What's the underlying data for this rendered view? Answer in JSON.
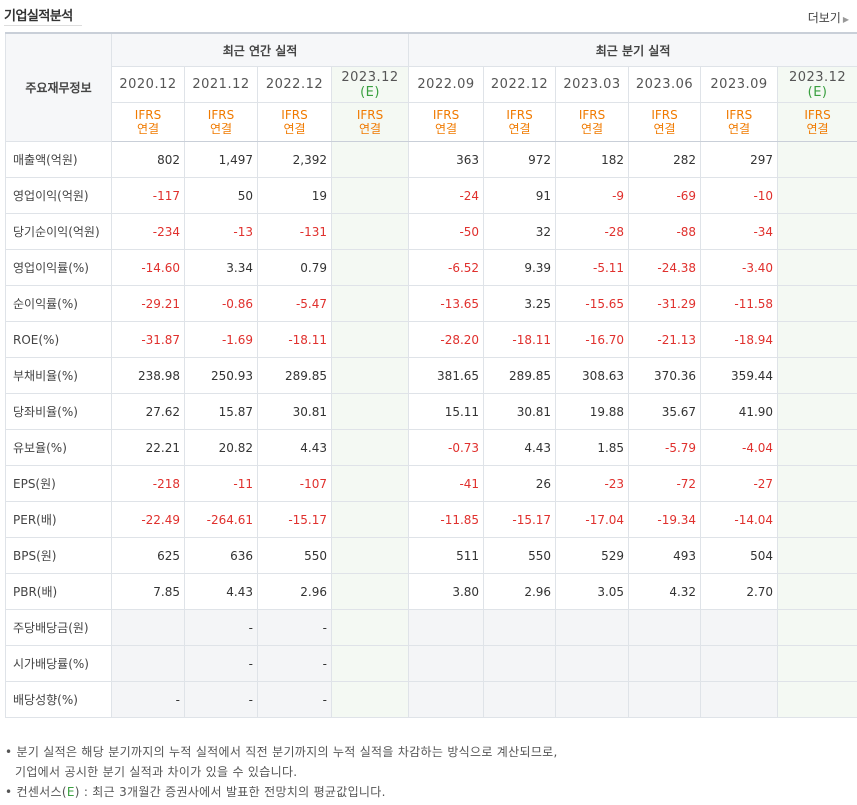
{
  "header": {
    "title": "기업실적분석",
    "more_label": "더보기"
  },
  "table": {
    "row_header": "주요재무정보",
    "annual_group": "최근 연간 실적",
    "quarter_group": "최근 분기 실적",
    "ifrs_top": "IFRS",
    "ifrs_bottom": "연결",
    "annual_periods": [
      "2020.12",
      "2021.12",
      "2022.12"
    ],
    "annual_estimate": {
      "period": "2023.12",
      "mark": "(E)"
    },
    "quarter_periods": [
      "2022.09",
      "2022.12",
      "2023.03",
      "2023.06",
      "2023.09"
    ],
    "quarter_estimate": {
      "period": "2023.12",
      "mark": "(E)"
    },
    "rows": [
      {
        "label": "매출액(억원)",
        "annual": [
          "802",
          "1,497",
          "2,392"
        ],
        "quarter": [
          "363",
          "972",
          "182",
          "282",
          "297"
        ]
      },
      {
        "label": "영업이익(억원)",
        "annual": [
          "-117",
          "50",
          "19"
        ],
        "quarter": [
          "-24",
          "91",
          "-9",
          "-69",
          "-10"
        ]
      },
      {
        "label": "당기순이익(억원)",
        "annual": [
          "-234",
          "-13",
          "-131"
        ],
        "quarter": [
          "-50",
          "32",
          "-28",
          "-88",
          "-34"
        ]
      },
      {
        "label": "영업이익률(%)",
        "annual": [
          "-14.60",
          "3.34",
          "0.79"
        ],
        "quarter": [
          "-6.52",
          "9.39",
          "-5.11",
          "-24.38",
          "-3.40"
        ]
      },
      {
        "label": "순이익률(%)",
        "annual": [
          "-29.21",
          "-0.86",
          "-5.47"
        ],
        "quarter": [
          "-13.65",
          "3.25",
          "-15.65",
          "-31.29",
          "-11.58"
        ]
      },
      {
        "label": "ROE(%)",
        "annual": [
          "-31.87",
          "-1.69",
          "-18.11"
        ],
        "quarter": [
          "-28.20",
          "-18.11",
          "-16.70",
          "-21.13",
          "-18.94"
        ]
      },
      {
        "label": "부채비율(%)",
        "annual": [
          "238.98",
          "250.93",
          "289.85"
        ],
        "quarter": [
          "381.65",
          "289.85",
          "308.63",
          "370.36",
          "359.44"
        ]
      },
      {
        "label": "당좌비율(%)",
        "annual": [
          "27.62",
          "15.87",
          "30.81"
        ],
        "quarter": [
          "15.11",
          "30.81",
          "19.88",
          "35.67",
          "41.90"
        ]
      },
      {
        "label": "유보율(%)",
        "annual": [
          "22.21",
          "20.82",
          "4.43"
        ],
        "quarter": [
          "-0.73",
          "4.43",
          "1.85",
          "-5.79",
          "-4.04"
        ]
      },
      {
        "label": "EPS(원)",
        "annual": [
          "-218",
          "-11",
          "-107"
        ],
        "quarter": [
          "-41",
          "26",
          "-23",
          "-72",
          "-27"
        ]
      },
      {
        "label": "PER(배)",
        "annual": [
          "-22.49",
          "-264.61",
          "-15.17"
        ],
        "quarter": [
          "-11.85",
          "-15.17",
          "-17.04",
          "-19.34",
          "-14.04"
        ]
      },
      {
        "label": "BPS(원)",
        "annual": [
          "625",
          "636",
          "550"
        ],
        "quarter": [
          "511",
          "550",
          "529",
          "493",
          "504"
        ]
      },
      {
        "label": "PBR(배)",
        "annual": [
          "7.85",
          "4.43",
          "2.96"
        ],
        "quarter": [
          "3.80",
          "2.96",
          "3.05",
          "4.32",
          "2.70"
        ]
      },
      {
        "label": "주당배당금(원)",
        "annual": [
          "",
          "-",
          "-"
        ],
        "quarter": [
          "",
          "",
          "",
          "",
          ""
        ]
      },
      {
        "label": "시가배당률(%)",
        "annual": [
          "",
          "-",
          "-"
        ],
        "quarter": [
          "",
          "",
          "",
          "",
          ""
        ]
      },
      {
        "label": "배당성향(%)",
        "annual": [
          "-",
          "-",
          "-"
        ],
        "quarter": [
          "",
          "",
          "",
          "",
          ""
        ]
      }
    ]
  },
  "notes": {
    "line1": "분기 실적은 해당 분기까지의 누적 실적에서 직전 분기까지의 누적 실적을 차감하는 방식으로 계산되므로,",
    "line2": "기업에서 공시한 분기 실적과 차이가 있을 수 있습니다.",
    "line3_prefix": "컨센서스(",
    "line3_mark": "E",
    "line3_suffix": ") : 최근 3개월간 증권사에서 발표한 전망치의 평균값입니다."
  },
  "colors": {
    "negative": "#e0302d",
    "ifrs": "#f07a00",
    "estimate": "#3aa040",
    "estimate_bg": "#f4f9f3"
  }
}
